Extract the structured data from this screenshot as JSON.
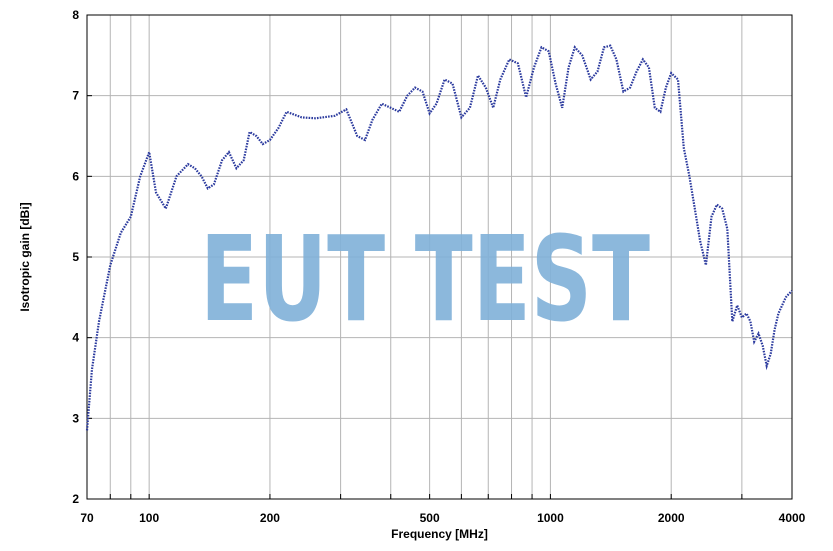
{
  "chart_data": {
    "type": "line",
    "title": "",
    "xlabel": "Frequency [MHz]",
    "ylabel": "Isotropic gain [dBi]",
    "x_scale": "log",
    "xlim": [
      70,
      4000
    ],
    "ylim": [
      2,
      8
    ],
    "x_tick_labels": [
      "70",
      "100",
      "200",
      "500",
      "1000",
      "2000",
      "4000"
    ],
    "x_tick_values": [
      70,
      100,
      200,
      500,
      1000,
      2000,
      4000
    ],
    "y_tick_values": [
      2,
      3,
      4,
      5,
      6,
      7,
      8
    ],
    "y_tick_labels": [
      "2",
      "3",
      "4",
      "5",
      "6",
      "7",
      "8"
    ],
    "grid": true,
    "line_color": "#2b3a9e",
    "line_style": "dotted",
    "watermark": {
      "text": "EUT TEST",
      "color": "#7fb0d8"
    },
    "series": [
      {
        "x": [
          70,
          72,
          75,
          80,
          85,
          90,
          95,
          100,
          104,
          110,
          117,
          125,
          130,
          135,
          140,
          145,
          152,
          158,
          165,
          172,
          178,
          185,
          192,
          200,
          210,
          220,
          240,
          260,
          290,
          310,
          330,
          345,
          360,
          380,
          400,
          420,
          440,
          460,
          480,
          500,
          520,
          545,
          570,
          600,
          630,
          660,
          690,
          720,
          750,
          790,
          830,
          870,
          910,
          950,
          990,
          1030,
          1070,
          1110,
          1150,
          1200,
          1260,
          1310,
          1360,
          1410,
          1460,
          1520,
          1580,
          1640,
          1700,
          1760,
          1820,
          1880,
          1940,
          2000,
          2080,
          2150,
          2220,
          2290,
          2360,
          2440,
          2520,
          2600,
          2680,
          2760,
          2840,
          2920,
          3000,
          3080,
          3150,
          3220,
          3300,
          3380,
          3460,
          3540,
          3620,
          3700,
          3780,
          3860,
          3940,
          4000
        ],
        "y": [
          2.85,
          3.6,
          4.2,
          4.9,
          5.3,
          5.5,
          6.0,
          6.3,
          5.8,
          5.6,
          6.0,
          6.15,
          6.1,
          6.0,
          5.85,
          5.9,
          6.2,
          6.3,
          6.1,
          6.2,
          6.55,
          6.5,
          6.4,
          6.45,
          6.6,
          6.8,
          6.73,
          6.72,
          6.75,
          6.83,
          6.5,
          6.45,
          6.7,
          6.9,
          6.85,
          6.8,
          7.0,
          7.1,
          7.05,
          6.78,
          6.9,
          7.2,
          7.15,
          6.73,
          6.85,
          7.25,
          7.1,
          6.85,
          7.2,
          7.45,
          7.4,
          6.98,
          7.35,
          7.6,
          7.55,
          7.15,
          6.85,
          7.35,
          7.6,
          7.5,
          7.2,
          7.3,
          7.6,
          7.62,
          7.45,
          7.05,
          7.1,
          7.3,
          7.45,
          7.35,
          6.85,
          6.8,
          7.1,
          7.28,
          7.2,
          6.35,
          6.0,
          5.6,
          5.2,
          4.9,
          5.5,
          5.65,
          5.6,
          5.35,
          4.2,
          4.4,
          4.25,
          4.3,
          4.2,
          3.95,
          4.05,
          3.9,
          3.65,
          3.8,
          4.1,
          4.3,
          4.4,
          4.5,
          4.55,
          4.58
        ]
      }
    ]
  }
}
